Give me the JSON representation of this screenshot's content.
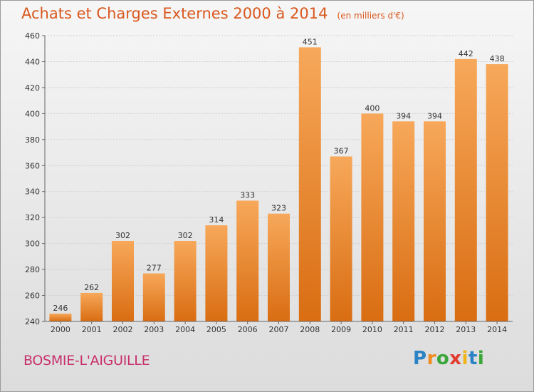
{
  "header": {
    "title": "Achats et Charges Externes 2000 à 2014",
    "subtitle": "(en milliers d'€)"
  },
  "place_name": "BOSMIE-L'AIGUILLE",
  "brand": {
    "letters": [
      "P",
      "r",
      "o",
      "x",
      "i",
      "t",
      "i"
    ],
    "colors": [
      "#2b82c4",
      "#f08a1d",
      "#3aa63a",
      "#e23a2e",
      "#f0b418",
      "#2b82c4",
      "#3aa63a"
    ]
  },
  "colors": {
    "bar_top": "#f7a85a",
    "bar_bottom": "#d96d12",
    "title": "#d9581f",
    "place": "#c8306b"
  },
  "chart_data": {
    "type": "bar",
    "title": "Achats et Charges Externes 2000 à 2014",
    "subtitle": "(en milliers d'€)",
    "categories": [
      "2000",
      "2001",
      "2002",
      "2003",
      "2004",
      "2005",
      "2006",
      "2007",
      "2008",
      "2009",
      "2010",
      "2011",
      "2012",
      "2013",
      "2014"
    ],
    "values": [
      246,
      262,
      302,
      277,
      302,
      314,
      333,
      323,
      451,
      367,
      400,
      394,
      394,
      442,
      438
    ],
    "ylim": [
      240,
      460
    ],
    "yticks": [
      240,
      260,
      280,
      300,
      320,
      340,
      360,
      380,
      400,
      420,
      440,
      460
    ],
    "grid": true,
    "xlabel": "",
    "ylabel": ""
  }
}
